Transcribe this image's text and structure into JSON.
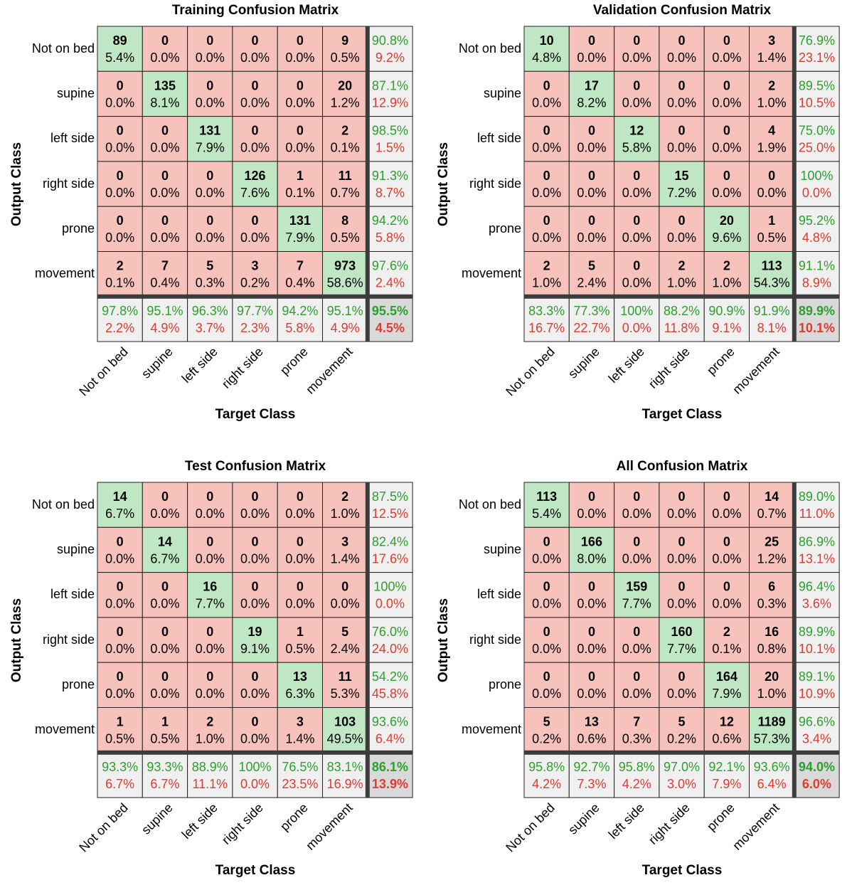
{
  "class_labels": [
    "Not on bed",
    "supine",
    "left side",
    "right side",
    "prone",
    "movement"
  ],
  "axis_labels": {
    "y": "Output Class",
    "x": "Target Class"
  },
  "colors": {
    "correct_cell": "#bfe7c4",
    "wrong_cell": "#f7c1bc",
    "summary_cell": "#f0f0f0",
    "total_cell": "#d9d9d9",
    "good_text": "#2ca02c",
    "bad_text": "#e03b2f",
    "grid": "#222222",
    "separator": "#3c3c3c"
  },
  "chart_data": [
    {
      "type": "heatmap",
      "title": "Training Confusion Matrix",
      "xlabel": "Target Class",
      "ylabel": "Output Class",
      "counts": [
        [
          89,
          0,
          0,
          0,
          0,
          9
        ],
        [
          0,
          135,
          0,
          0,
          0,
          20
        ],
        [
          0,
          0,
          131,
          0,
          0,
          2
        ],
        [
          0,
          0,
          0,
          126,
          1,
          11
        ],
        [
          0,
          0,
          0,
          0,
          131,
          8
        ],
        [
          2,
          7,
          5,
          3,
          7,
          973
        ]
      ],
      "percents": [
        [
          "5.4%",
          "0.0%",
          "0.0%",
          "0.0%",
          "0.0%",
          "0.5%"
        ],
        [
          "0.0%",
          "8.1%",
          "0.0%",
          "0.0%",
          "0.0%",
          "1.2%"
        ],
        [
          "0.0%",
          "0.0%",
          "7.9%",
          "0.0%",
          "0.0%",
          "0.1%"
        ],
        [
          "0.0%",
          "0.0%",
          "0.0%",
          "7.6%",
          "0.1%",
          "0.7%"
        ],
        [
          "0.0%",
          "0.0%",
          "0.0%",
          "0.0%",
          "7.9%",
          "0.5%"
        ],
        [
          "0.1%",
          "0.4%",
          "0.3%",
          "0.2%",
          "0.4%",
          "58.6%"
        ]
      ],
      "row_summary": [
        [
          "90.8%",
          "9.2%"
        ],
        [
          "87.1%",
          "12.9%"
        ],
        [
          "98.5%",
          "1.5%"
        ],
        [
          "91.3%",
          "8.7%"
        ],
        [
          "94.2%",
          "5.8%"
        ],
        [
          "97.6%",
          "2.4%"
        ]
      ],
      "col_summary": [
        [
          "97.8%",
          "2.2%"
        ],
        [
          "95.1%",
          "4.9%"
        ],
        [
          "96.3%",
          "3.7%"
        ],
        [
          "97.7%",
          "2.3%"
        ],
        [
          "94.2%",
          "5.8%"
        ],
        [
          "95.1%",
          "4.9%"
        ]
      ],
      "total": [
        "95.5%",
        "4.5%"
      ]
    },
    {
      "type": "heatmap",
      "title": "Validation Confusion Matrix",
      "xlabel": "Target Class",
      "ylabel": "Output Class",
      "counts": [
        [
          10,
          0,
          0,
          0,
          0,
          3
        ],
        [
          0,
          17,
          0,
          0,
          0,
          2
        ],
        [
          0,
          0,
          12,
          0,
          0,
          4
        ],
        [
          0,
          0,
          0,
          15,
          0,
          0
        ],
        [
          0,
          0,
          0,
          0,
          20,
          1
        ],
        [
          2,
          5,
          0,
          2,
          2,
          113
        ]
      ],
      "percents": [
        [
          "4.8%",
          "0.0%",
          "0.0%",
          "0.0%",
          "0.0%",
          "1.4%"
        ],
        [
          "0.0%",
          "8.2%",
          "0.0%",
          "0.0%",
          "0.0%",
          "1.0%"
        ],
        [
          "0.0%",
          "0.0%",
          "5.8%",
          "0.0%",
          "0.0%",
          "1.9%"
        ],
        [
          "0.0%",
          "0.0%",
          "0.0%",
          "7.2%",
          "0.0%",
          "0.0%"
        ],
        [
          "0.0%",
          "0.0%",
          "0.0%",
          "0.0%",
          "9.6%",
          "0.5%"
        ],
        [
          "1.0%",
          "2.4%",
          "0.0%",
          "1.0%",
          "1.0%",
          "54.3%"
        ]
      ],
      "row_summary": [
        [
          "76.9%",
          "23.1%"
        ],
        [
          "89.5%",
          "10.5%"
        ],
        [
          "75.0%",
          "25.0%"
        ],
        [
          "100%",
          "0.0%"
        ],
        [
          "95.2%",
          "4.8%"
        ],
        [
          "91.1%",
          "8.9%"
        ]
      ],
      "col_summary": [
        [
          "83.3%",
          "16.7%"
        ],
        [
          "77.3%",
          "22.7%"
        ],
        [
          "100%",
          "0.0%"
        ],
        [
          "88.2%",
          "11.8%"
        ],
        [
          "90.9%",
          "9.1%"
        ],
        [
          "91.9%",
          "8.1%"
        ]
      ],
      "total": [
        "89.9%",
        "10.1%"
      ]
    },
    {
      "type": "heatmap",
      "title": "Test Confusion Matrix",
      "xlabel": "Target Class",
      "ylabel": "Output Class",
      "counts": [
        [
          14,
          0,
          0,
          0,
          0,
          2
        ],
        [
          0,
          14,
          0,
          0,
          0,
          3
        ],
        [
          0,
          0,
          16,
          0,
          0,
          0
        ],
        [
          0,
          0,
          0,
          19,
          1,
          5
        ],
        [
          0,
          0,
          0,
          0,
          13,
          11
        ],
        [
          1,
          1,
          2,
          0,
          3,
          103
        ]
      ],
      "percents": [
        [
          "6.7%",
          "0.0%",
          "0.0%",
          "0.0%",
          "0.0%",
          "1.0%"
        ],
        [
          "0.0%",
          "6.7%",
          "0.0%",
          "0.0%",
          "0.0%",
          "1.4%"
        ],
        [
          "0.0%",
          "0.0%",
          "7.7%",
          "0.0%",
          "0.0%",
          "0.0%"
        ],
        [
          "0.0%",
          "0.0%",
          "0.0%",
          "9.1%",
          "0.5%",
          "2.4%"
        ],
        [
          "0.0%",
          "0.0%",
          "0.0%",
          "0.0%",
          "6.3%",
          "5.3%"
        ],
        [
          "0.5%",
          "0.5%",
          "1.0%",
          "0.0%",
          "1.4%",
          "49.5%"
        ]
      ],
      "row_summary": [
        [
          "87.5%",
          "12.5%"
        ],
        [
          "82.4%",
          "17.6%"
        ],
        [
          "100%",
          "0.0%"
        ],
        [
          "76.0%",
          "24.0%"
        ],
        [
          "54.2%",
          "45.8%"
        ],
        [
          "93.6%",
          "6.4%"
        ]
      ],
      "col_summary": [
        [
          "93.3%",
          "6.7%"
        ],
        [
          "93.3%",
          "6.7%"
        ],
        [
          "88.9%",
          "11.1%"
        ],
        [
          "100%",
          "0.0%"
        ],
        [
          "76.5%",
          "23.5%"
        ],
        [
          "83.1%",
          "16.9%"
        ]
      ],
      "total": [
        "86.1%",
        "13.9%"
      ]
    },
    {
      "type": "heatmap",
      "title": "All Confusion Matrix",
      "xlabel": "Target Class",
      "ylabel": "Output Class",
      "counts": [
        [
          113,
          0,
          0,
          0,
          0,
          14
        ],
        [
          0,
          166,
          0,
          0,
          0,
          25
        ],
        [
          0,
          0,
          159,
          0,
          0,
          6
        ],
        [
          0,
          0,
          0,
          160,
          2,
          16
        ],
        [
          0,
          0,
          0,
          0,
          164,
          20
        ],
        [
          5,
          13,
          7,
          5,
          12,
          1189
        ]
      ],
      "percents": [
        [
          "5.4%",
          "0.0%",
          "0.0%",
          "0.0%",
          "0.0%",
          "0.7%"
        ],
        [
          "0.0%",
          "8.0%",
          "0.0%",
          "0.0%",
          "0.0%",
          "1.2%"
        ],
        [
          "0.0%",
          "0.0%",
          "7.7%",
          "0.0%",
          "0.0%",
          "0.3%"
        ],
        [
          "0.0%",
          "0.0%",
          "0.0%",
          "7.7%",
          "0.1%",
          "0.8%"
        ],
        [
          "0.0%",
          "0.0%",
          "0.0%",
          "0.0%",
          "7.9%",
          "1.0%"
        ],
        [
          "0.2%",
          "0.6%",
          "0.3%",
          "0.2%",
          "0.6%",
          "57.3%"
        ]
      ],
      "row_summary": [
        [
          "89.0%",
          "11.0%"
        ],
        [
          "86.9%",
          "13.1%"
        ],
        [
          "96.4%",
          "3.6%"
        ],
        [
          "89.9%",
          "10.1%"
        ],
        [
          "89.1%",
          "10.9%"
        ],
        [
          "96.6%",
          "3.4%"
        ]
      ],
      "col_summary": [
        [
          "95.8%",
          "4.2%"
        ],
        [
          "92.7%",
          "7.3%"
        ],
        [
          "95.8%",
          "4.2%"
        ],
        [
          "97.0%",
          "3.0%"
        ],
        [
          "92.1%",
          "7.9%"
        ],
        [
          "93.6%",
          "6.4%"
        ]
      ],
      "total": [
        "94.0%",
        "6.0%"
      ]
    }
  ]
}
